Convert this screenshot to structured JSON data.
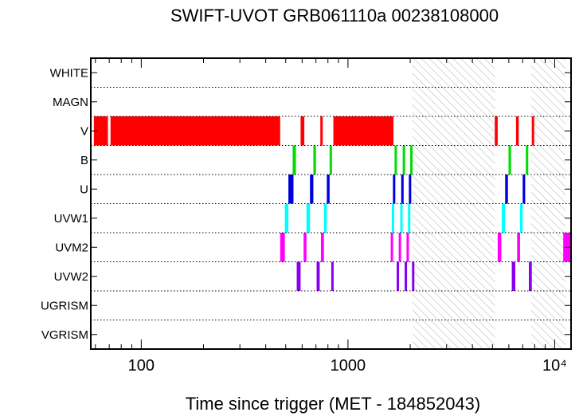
{
  "chart_data": {
    "type": "timeline",
    "title": "SWIFT-UVOT GRB061110a 00238108000",
    "xlabel": "Time since trigger (MET - 184852043)",
    "x_scale": "log",
    "xlim": [
      57,
      12000
    ],
    "x_major_ticks": [
      {
        "value": 100,
        "label": "100"
      },
      {
        "value": 1000,
        "label": "1000"
      },
      {
        "value": 10000,
        "label": "10⁴"
      }
    ],
    "rows": [
      "WHITE",
      "MAGN",
      "V",
      "B",
      "U",
      "UVW1",
      "UVM2",
      "UVW2",
      "UGRISM",
      "VGRISM"
    ],
    "shaded_intervals": [
      [
        2050,
        5150
      ],
      [
        7700,
        11300
      ]
    ],
    "colors": {
      "V": "#ff0000",
      "B": "#00dd00",
      "U": "#0000dd",
      "UVW1": "#00ffff",
      "UVM2": "#ff00ff",
      "UVW2": "#8800ee",
      "hatch": "#b0b0b0",
      "grid": "#000000"
    },
    "exposures": [
      {
        "filter": "V",
        "start": 59,
        "end": 69
      },
      {
        "filter": "V",
        "start": 71,
        "end": 470
      },
      {
        "filter": "V",
        "start": 590,
        "end": 615
      },
      {
        "filter": "V",
        "start": 735,
        "end": 755
      },
      {
        "filter": "V",
        "start": 850,
        "end": 1660
      },
      {
        "filter": "V",
        "start": 5130,
        "end": 5300
      },
      {
        "filter": "V",
        "start": 6500,
        "end": 6700
      },
      {
        "filter": "V",
        "start": 7750,
        "end": 7950
      },
      {
        "filter": "B",
        "start": 540,
        "end": 560
      },
      {
        "filter": "B",
        "start": 680,
        "end": 700
      },
      {
        "filter": "B",
        "start": 815,
        "end": 830
      },
      {
        "filter": "B",
        "start": 1680,
        "end": 1720
      },
      {
        "filter": "B",
        "start": 1840,
        "end": 1880
      },
      {
        "filter": "B",
        "start": 2000,
        "end": 2040
      },
      {
        "filter": "B",
        "start": 5980,
        "end": 6150
      },
      {
        "filter": "B",
        "start": 7250,
        "end": 7450
      },
      {
        "filter": "U",
        "start": 515,
        "end": 545
      },
      {
        "filter": "U",
        "start": 655,
        "end": 680
      },
      {
        "filter": "U",
        "start": 790,
        "end": 815
      },
      {
        "filter": "U",
        "start": 1650,
        "end": 1670
      },
      {
        "filter": "U",
        "start": 1810,
        "end": 1830
      },
      {
        "filter": "U",
        "start": 1970,
        "end": 1990
      },
      {
        "filter": "U",
        "start": 5760,
        "end": 5940
      },
      {
        "filter": "U",
        "start": 7000,
        "end": 7200
      },
      {
        "filter": "UVW1",
        "start": 495,
        "end": 515
      },
      {
        "filter": "UVW1",
        "start": 630,
        "end": 655
      },
      {
        "filter": "UVW1",
        "start": 765,
        "end": 790
      },
      {
        "filter": "UVW1",
        "start": 1630,
        "end": 1650
      },
      {
        "filter": "UVW1",
        "start": 1790,
        "end": 1810
      },
      {
        "filter": "UVW1",
        "start": 1950,
        "end": 1970
      },
      {
        "filter": "UVW1",
        "start": 5550,
        "end": 5750
      },
      {
        "filter": "UVW1",
        "start": 6800,
        "end": 7000
      },
      {
        "filter": "UVM2",
        "start": 470,
        "end": 495
      },
      {
        "filter": "UVM2",
        "start": 610,
        "end": 630
      },
      {
        "filter": "UVM2",
        "start": 740,
        "end": 765
      },
      {
        "filter": "UVM2",
        "start": 1610,
        "end": 1630
      },
      {
        "filter": "UVM2",
        "start": 1760,
        "end": 1780
      },
      {
        "filter": "UVM2",
        "start": 1920,
        "end": 1940
      },
      {
        "filter": "UVM2",
        "start": 5300,
        "end": 5520
      },
      {
        "filter": "UVM2",
        "start": 6580,
        "end": 6800
      },
      {
        "filter": "UVM2",
        "start": 11000,
        "end": 12000
      },
      {
        "filter": "UVW2",
        "start": 565,
        "end": 590
      },
      {
        "filter": "UVW2",
        "start": 705,
        "end": 730
      },
      {
        "filter": "UVW2",
        "start": 830,
        "end": 850
      },
      {
        "filter": "UVW2",
        "start": 1720,
        "end": 1740
      },
      {
        "filter": "UVW2",
        "start": 1880,
        "end": 1900
      },
      {
        "filter": "UVW2",
        "start": 2040,
        "end": 2060
      },
      {
        "filter": "UVW2",
        "start": 6200,
        "end": 6450
      },
      {
        "filter": "UVW2",
        "start": 7500,
        "end": 7750
      }
    ]
  }
}
